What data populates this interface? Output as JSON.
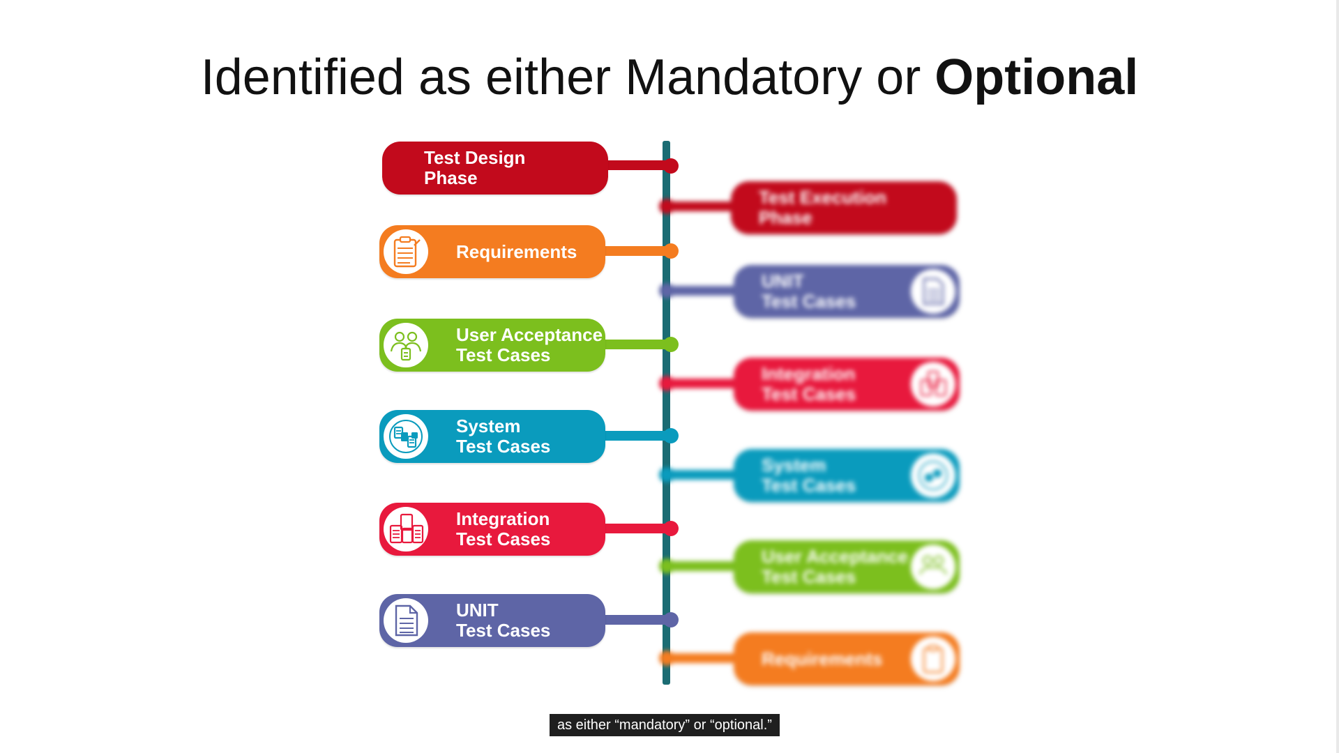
{
  "title": {
    "regular": "Identified as either Mandatory or ",
    "bold": "Optional"
  },
  "left_column": {
    "header": "Test Design\nPhase",
    "items": [
      {
        "label": "Requirements",
        "icon": "clipboard-icon"
      },
      {
        "label": "User Acceptance\nTest Cases",
        "icon": "users-icon"
      },
      {
        "label": "System\nTest Cases",
        "icon": "system-icon"
      },
      {
        "label": "Integration\nTest Cases",
        "icon": "documents-icon"
      },
      {
        "label": "UNIT\nTest Cases",
        "icon": "document-icon"
      }
    ]
  },
  "right_column": {
    "header": "Test Execution\nPhase",
    "items": [
      {
        "label": "UNIT\nTest Cases",
        "icon": "document-icon"
      },
      {
        "label": "Integration\nTest Cases",
        "icon": "documents-icon"
      },
      {
        "label": "System\nTest Cases",
        "icon": "system-icon"
      },
      {
        "label": "User Acceptance\nTest Cases",
        "icon": "users-icon"
      },
      {
        "label": "Requirements",
        "icon": "clipboard-icon"
      }
    ]
  },
  "colors": {
    "header": "#c20a1c",
    "requirements": "#f47c20",
    "user_acceptance": "#7cbf1e",
    "system": "#0a9bbd",
    "integration": "#e8193d",
    "unit": "#5e65a6",
    "spine": "#1b6c73"
  },
  "caption": "as either “mandatory” or “optional.”"
}
